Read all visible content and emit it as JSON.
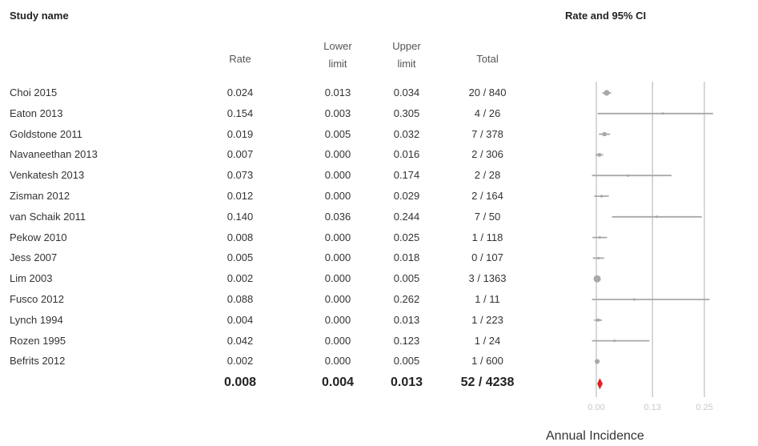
{
  "chart_data": {
    "type": "forest",
    "title": "Rate and 95% CI",
    "study_header": "Study name",
    "columns": {
      "rate": "Rate",
      "lower": [
        "Lower",
        "limit"
      ],
      "upper": [
        "Upper",
        "limit"
      ],
      "total": "Total"
    },
    "studies": [
      {
        "name": "Choi 2015",
        "rate": "0.024",
        "lower": "0.013",
        "upper": "0.034",
        "total": "20 / 840"
      },
      {
        "name": "Eaton 2013",
        "rate": "0.154",
        "lower": "0.003",
        "upper": "0.305",
        "total": "4 / 26"
      },
      {
        "name": "Goldstone 2011",
        "rate": "0.019",
        "lower": "0.005",
        "upper": "0.032",
        "total": "7 / 378"
      },
      {
        "name": "Navaneethan 2013",
        "rate": "0.007",
        "lower": "0.000",
        "upper": "0.016",
        "total": "2 / 306"
      },
      {
        "name": "Venkatesh 2013",
        "rate": "0.073",
        "lower": "0.000",
        "upper": "0.174",
        "total": "2 / 28"
      },
      {
        "name": "Zisman 2012",
        "rate": "0.012",
        "lower": "0.000",
        "upper": "0.029",
        "total": "2 / 164"
      },
      {
        "name": "van Schaik 2011",
        "rate": "0.140",
        "lower": "0.036",
        "upper": "0.244",
        "total": "7 / 50"
      },
      {
        "name": "Pekow 2010",
        "rate": "0.008",
        "lower": "0.000",
        "upper": "0.025",
        "total": "1 / 118"
      },
      {
        "name": "Jess 2007",
        "rate": "0.005",
        "lower": "0.000",
        "upper": "0.018",
        "total": "0 / 107"
      },
      {
        "name": "Lim 2003",
        "rate": "0.002",
        "lower": "0.000",
        "upper": "0.005",
        "total": "3 / 1363"
      },
      {
        "name": "Fusco 2012",
        "rate": "0.088",
        "lower": "0.000",
        "upper": "0.262",
        "total": "1 / 11"
      },
      {
        "name": "Lynch 1994",
        "rate": "0.004",
        "lower": "0.000",
        "upper": "0.013",
        "total": "1 / 223"
      },
      {
        "name": "Rozen 1995",
        "rate": "0.042",
        "lower": "0.000",
        "upper": "0.123",
        "total": "1 / 24"
      },
      {
        "name": "Befrits 2012",
        "rate": "0.002",
        "lower": "0.000",
        "upper": "0.005",
        "total": "1 / 600"
      }
    ],
    "pooled": {
      "rate": "0.008",
      "lower": "0.004",
      "upper": "0.013",
      "total": "52 / 4238"
    },
    "x_axis": {
      "label": "Annual Incidence",
      "ticks": [
        0.0,
        0.13,
        0.25
      ],
      "tick_labels": [
        "0.00",
        "0.13",
        "0.25"
      ],
      "range": [
        -0.01,
        0.27
      ]
    },
    "colors": {
      "study": "#a8a8a8",
      "pooled": "#e02020",
      "gridline": "#bdbdbd",
      "tick_label": "#c8c8c8"
    }
  }
}
